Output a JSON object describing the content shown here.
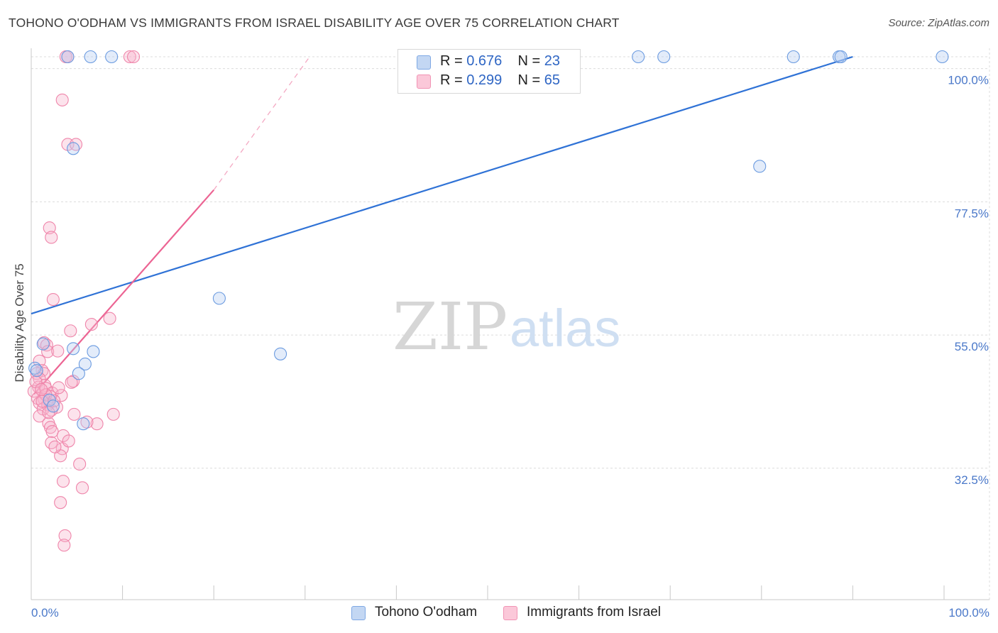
{
  "title": "TOHONO O'ODHAM VS IMMIGRANTS FROM ISRAEL DISABILITY AGE OVER 75 CORRELATION CHART",
  "source": "Source: ZipAtlas.com",
  "watermark": {
    "part1": "ZIP",
    "part2": "atlas"
  },
  "legend": {
    "series1": {
      "r_label": "R = ",
      "r_value": "0.676",
      "n_label": "N = ",
      "n_value": "23"
    },
    "series2": {
      "r_label": "R = ",
      "r_value": "0.299",
      "n_label": "N = ",
      "n_value": "65"
    }
  },
  "bottom_legend": {
    "series1": "Tohono O'odham",
    "series2": "Immigrants from Israel"
  },
  "chart_data": {
    "type": "scatter",
    "title": "TOHONO O'ODHAM VS IMMIGRANTS FROM ISRAEL DISABILITY AGE OVER 75 CORRELATION CHART",
    "xlabel": "",
    "ylabel": "Disability Age Over 75",
    "xlim": [
      0,
      100
    ],
    "ylim": [
      10,
      102
    ],
    "x_tick_labels": [
      "0.0%",
      "100.0%"
    ],
    "y_ticks": [
      {
        "value": 100,
        "label": "100.0%"
      },
      {
        "value": 77.5,
        "label": "77.5%"
      },
      {
        "value": 55,
        "label": "55.0%"
      },
      {
        "value": 32.5,
        "label": "32.5%"
      }
    ],
    "grid": true,
    "colors": {
      "series1": "#6b9be0",
      "series2": "#f07aa3",
      "line1": "#2f72d6",
      "line2": "#ec6493"
    },
    "series": [
      {
        "name": "Tohono O'odham",
        "R": 0.676,
        "N": 23,
        "points": [
          [
            4,
            102
          ],
          [
            6.5,
            102
          ],
          [
            8.8,
            102
          ],
          [
            66.5,
            102
          ],
          [
            69.3,
            102
          ],
          [
            83.5,
            102
          ],
          [
            88.5,
            102
          ],
          [
            88.7,
            102
          ],
          [
            99.8,
            102
          ],
          [
            4.6,
            86.5
          ],
          [
            79.8,
            83.5
          ],
          [
            20.6,
            61.2
          ],
          [
            27.3,
            51.8
          ],
          [
            0.4,
            49.4
          ],
          [
            0.6,
            49
          ],
          [
            1.3,
            53.5
          ],
          [
            4.6,
            52.7
          ],
          [
            6.8,
            52.2
          ],
          [
            5.9,
            50.1
          ],
          [
            5.2,
            48.5
          ],
          [
            2,
            44
          ],
          [
            2.4,
            43
          ],
          [
            5.7,
            40
          ]
        ],
        "trendline": {
          "x1": 0,
          "y1": 58.6,
          "x2": 90,
          "y2": 102
        }
      },
      {
        "name": "Immigrants from Israel",
        "R": 0.299,
        "N": 65,
        "points": [
          [
            3.8,
            102
          ],
          [
            4,
            102
          ],
          [
            10.8,
            102
          ],
          [
            11.2,
            102
          ],
          [
            3.4,
            94.7
          ],
          [
            4,
            87.2
          ],
          [
            4.9,
            87.2
          ],
          [
            2,
            73.1
          ],
          [
            2.2,
            71.5
          ],
          [
            2.4,
            61
          ],
          [
            4.3,
            55.7
          ],
          [
            6.6,
            56.8
          ],
          [
            8.6,
            57.8
          ],
          [
            1.4,
            53.7
          ],
          [
            1.7,
            53.3
          ],
          [
            1.8,
            52.2
          ],
          [
            2.9,
            52.3
          ],
          [
            0.9,
            50.6
          ],
          [
            1.2,
            49
          ],
          [
            0.6,
            48.5
          ],
          [
            1.4,
            48.5
          ],
          [
            0.9,
            47.6
          ],
          [
            4.6,
            47.2
          ],
          [
            4.4,
            47
          ],
          [
            1.5,
            46.5
          ],
          [
            0.8,
            46.2
          ],
          [
            1.6,
            46
          ],
          [
            0.3,
            45.5
          ],
          [
            2.3,
            45.2
          ],
          [
            3.3,
            44.8
          ],
          [
            2.1,
            44.6
          ],
          [
            1.4,
            44.2
          ],
          [
            0.7,
            44.3
          ],
          [
            0.9,
            43.5
          ],
          [
            1.8,
            43.2
          ],
          [
            2.8,
            42.8
          ],
          [
            1.3,
            42.5
          ],
          [
            2.2,
            42.3
          ],
          [
            0.9,
            41.3
          ],
          [
            4.7,
            41.6
          ],
          [
            9,
            41.6
          ],
          [
            1.9,
            40.1
          ],
          [
            2.1,
            39.4
          ],
          [
            7.2,
            40
          ],
          [
            2.3,
            38.7
          ],
          [
            3.5,
            38
          ],
          [
            2.2,
            36.8
          ],
          [
            3.4,
            35.8
          ],
          [
            4.1,
            37.1
          ],
          [
            3.2,
            34.6
          ],
          [
            5.3,
            33.2
          ],
          [
            3.5,
            30.3
          ],
          [
            5.6,
            29.2
          ],
          [
            3.2,
            26.7
          ],
          [
            3.7,
            21.1
          ],
          [
            3.6,
            19.5
          ],
          [
            2.6,
            36.1
          ],
          [
            1.6,
            44.9
          ],
          [
            0.5,
            47.1
          ],
          [
            1.1,
            45.8
          ],
          [
            2.5,
            43.9
          ],
          [
            3,
            46.1
          ],
          [
            1.9,
            41.9
          ],
          [
            6.1,
            40.3
          ],
          [
            1.2,
            43.8
          ]
        ],
        "trendline": {
          "x1": 0.3,
          "y1": 45,
          "x2": 20,
          "y2": 79.5
        },
        "trendline_extension": {
          "x1": 20,
          "y1": 79.5,
          "x2": 30.5,
          "y2": 102
        }
      }
    ]
  }
}
